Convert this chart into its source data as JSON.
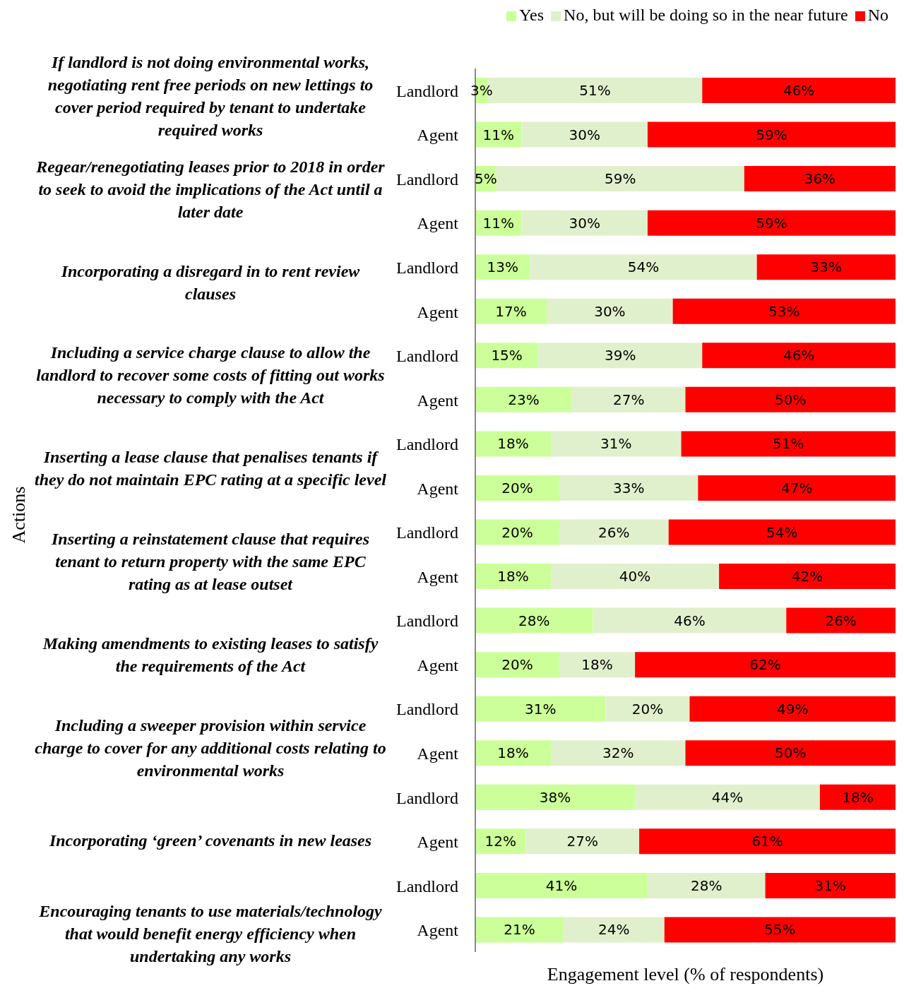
{
  "chart_data": {
    "type": "bar",
    "orientation": "horizontal",
    "stacked": true,
    "xlabel": "Engagement level (% of respondents)",
    "legend": "top right",
    "categories": [
      "Landlord",
      "Agent",
      "Landlord",
      "Agent",
      "Landlord",
      "Agent",
      "Landlord",
      "Agent",
      "Landlord",
      "Agent",
      "Landlord",
      "Agent",
      "Landlord",
      "Agent",
      "Landlord",
      "Agent",
      "Landlord",
      "Agent",
      "Landlord",
      "Agent"
    ],
    "annotations": [
      "If landlord is not doing environmental works, negotiating rent free periods on new lettings to cover period required by tenant to undertake required works",
      "Regear/renegotiating leases prior to 2018 in order to seek to avoid the implications of the Act until a later date",
      "Incorporating a disregard in to rent review clauses",
      "Including a service charge clause to allow the landlord to recover some costs of fitting out works necessary to comply with the Act",
      "Inserting a lease clause that penalises tenants if they do not maintain EPC rating at a specific level",
      "Inserting a reinstatement clause that requires tenant to return property with the same EPC rating as at lease outset",
      "Making amendments to existing leases to satisfy the requirements of the Act",
      "Including a sweeper provision within service charge to cover for any additional costs relating to environmental works",
      "Incorporating ‘green’ covenants in new leases",
      "Encouraging tenants to use materials/technology that would benefit energy efficiency when undertaking any works",
      "Actions"
    ],
    "series": [
      {
        "name": "Yes",
        "color": "#ccff99",
        "values": [
          3,
          11,
          5,
          11,
          13,
          17,
          15,
          23,
          18,
          20,
          20,
          18,
          28,
          20,
          31,
          18,
          38,
          12,
          41,
          21
        ],
        "value_labels": [
          "3%",
          "11%",
          "5%",
          "11%",
          "13%",
          "17%",
          "15%",
          "23%",
          "18%",
          "20%",
          "20%",
          "18%",
          "28%",
          "20%",
          "31%",
          "18%",
          "38%",
          "12%",
          "41%",
          "21%"
        ]
      },
      {
        "name": "No, but will be doing so in the near future",
        "color": "#e0f0cc",
        "values": [
          51,
          30,
          59,
          30,
          54,
          30,
          39,
          27,
          31,
          33,
          26,
          40,
          46,
          18,
          20,
          32,
          44,
          27,
          28,
          24
        ],
        "value_labels": [
          "51%",
          "30%",
          "59%",
          "30%",
          "54%",
          "30%",
          "39%",
          "27%",
          "31%",
          "33%",
          "26%",
          "40%",
          "46%",
          "18%",
          "20%",
          "32%",
          "44%",
          "27%",
          "28%",
          "24%"
        ]
      },
      {
        "name": "No",
        "color": "#ff0000",
        "values": [
          46,
          59,
          36,
          59,
          33,
          53,
          46,
          50,
          51,
          47,
          54,
          42,
          26,
          62,
          49,
          50,
          18,
          61,
          31,
          55
        ],
        "value_labels": [
          "46%",
          "59%",
          "36%",
          "59%",
          "33%",
          "53%",
          "46%",
          "50%",
          "51%",
          "47%",
          "54%",
          "42%",
          "26%",
          "62%",
          "49%",
          "50%",
          "18%",
          "61%",
          "31%",
          "55%"
        ]
      }
    ]
  }
}
